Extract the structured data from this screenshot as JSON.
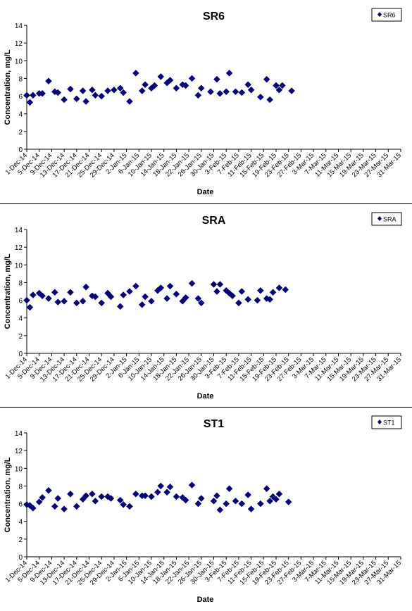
{
  "chart_data": [
    {
      "type": "scatter",
      "title": "SR6",
      "xlabel": "Date",
      "ylabel": "Concentration, mg/L",
      "ylim": [
        0,
        14
      ],
      "yticks": [
        0,
        2,
        4,
        6,
        8,
        10,
        12,
        14
      ],
      "xlim": [
        "1-Dec-14",
        "31-Mar-15"
      ],
      "xticks": [
        "1-Dec-14",
        "5-Dec-14",
        "9-Dec-14",
        "13-Dec-14",
        "17-Dec-14",
        "21-Dec-14",
        "25-Dec-14",
        "29-Dec-14",
        "2-Jan-15",
        "6-Jan-15",
        "10-Jan-15",
        "14-Jan-15",
        "18-Jan-15",
        "22-Jan-15",
        "26-Jan-15",
        "30-Jan-15",
        "3-Feb-15",
        "7-Feb-15",
        "11-Feb-15",
        "15-Feb-15",
        "19-Feb-15",
        "23-Feb-15",
        "27-Feb-15",
        "3-Mar-15",
        "7-Mar-15",
        "11-Mar-15",
        "15-Mar-15",
        "19-Mar-15",
        "23-Mar-15",
        "27-Mar-15",
        "31-Mar-15"
      ],
      "grid": false,
      "legend": "top-right",
      "series": [
        {
          "name": "SR6",
          "color": "#000080",
          "marker": "diamond",
          "points": [
            {
              "x": "1-Dec-14",
              "y": 6.1
            },
            {
              "x": "2-Dec-14",
              "y": 5.3
            },
            {
              "x": "3-Dec-14",
              "y": 6.1
            },
            {
              "x": "5-Dec-14",
              "y": 6.3
            },
            {
              "x": "6-Dec-14",
              "y": 6.3
            },
            {
              "x": "8-Dec-14",
              "y": 7.7
            },
            {
              "x": "10-Dec-14",
              "y": 6.5
            },
            {
              "x": "11-Dec-14",
              "y": 6.4
            },
            {
              "x": "13-Dec-14",
              "y": 5.6
            },
            {
              "x": "15-Dec-14",
              "y": 6.8
            },
            {
              "x": "17-Dec-14",
              "y": 5.7
            },
            {
              "x": "19-Dec-14",
              "y": 6.6
            },
            {
              "x": "20-Dec-14",
              "y": 5.4
            },
            {
              "x": "22-Dec-14",
              "y": 6.7
            },
            {
              "x": "23-Dec-14",
              "y": 6.1
            },
            {
              "x": "25-Dec-14",
              "y": 6.0
            },
            {
              "x": "27-Dec-14",
              "y": 6.6
            },
            {
              "x": "29-Dec-14",
              "y": 6.7
            },
            {
              "x": "31-Dec-14",
              "y": 6.9
            },
            {
              "x": "1-Jan-15",
              "y": 6.4
            },
            {
              "x": "3-Jan-15",
              "y": 5.4
            },
            {
              "x": "5-Jan-15",
              "y": 8.6
            },
            {
              "x": "7-Jan-15",
              "y": 6.6
            },
            {
              "x": "8-Jan-15",
              "y": 7.3
            },
            {
              "x": "10-Jan-15",
              "y": 6.9
            },
            {
              "x": "11-Jan-15",
              "y": 7.2
            },
            {
              "x": "13-Jan-15",
              "y": 8.2
            },
            {
              "x": "15-Jan-15",
              "y": 7.5
            },
            {
              "x": "16-Jan-15",
              "y": 7.8
            },
            {
              "x": "18-Jan-15",
              "y": 6.9
            },
            {
              "x": "20-Jan-15",
              "y": 7.3
            },
            {
              "x": "21-Jan-15",
              "y": 7.2
            },
            {
              "x": "23-Jan-15",
              "y": 8.0
            },
            {
              "x": "25-Jan-15",
              "y": 6.1
            },
            {
              "x": "26-Jan-15",
              "y": 6.9
            },
            {
              "x": "29-Jan-15",
              "y": 6.5
            },
            {
              "x": "31-Jan-15",
              "y": 7.9
            },
            {
              "x": "1-Feb-15",
              "y": 6.3
            },
            {
              "x": "3-Feb-15",
              "y": 6.5
            },
            {
              "x": "4-Feb-15",
              "y": 8.6
            },
            {
              "x": "6-Feb-15",
              "y": 6.5
            },
            {
              "x": "8-Feb-15",
              "y": 6.4
            },
            {
              "x": "10-Feb-15",
              "y": 7.3
            },
            {
              "x": "11-Feb-15",
              "y": 6.7
            },
            {
              "x": "14-Feb-15",
              "y": 5.9
            },
            {
              "x": "16-Feb-15",
              "y": 7.9
            },
            {
              "x": "17-Feb-15",
              "y": 5.6
            },
            {
              "x": "19-Feb-15",
              "y": 7.2
            },
            {
              "x": "20-Feb-15",
              "y": 6.7
            },
            {
              "x": "21-Feb-15",
              "y": 7.2
            },
            {
              "x": "24-Feb-15",
              "y": 6.6
            }
          ]
        }
      ]
    },
    {
      "type": "scatter",
      "title": "SRA",
      "xlabel": "Date",
      "ylabel": "Concentration, mg/L",
      "ylim": [
        0,
        14
      ],
      "yticks": [
        0,
        2,
        4,
        6,
        8,
        10,
        12,
        14
      ],
      "xlim": [
        "1-Dec-14",
        "31-Mar-15"
      ],
      "xticks": [
        "1-Dec-14",
        "5-Dec-14",
        "9-Dec-14",
        "13-Dec-14",
        "17-Dec-14",
        "21-Dec-14",
        "25-Dec-14",
        "29-Dec-14",
        "2-Jan-15",
        "6-Jan-15",
        "10-Jan-15",
        "14-Jan-15",
        "18-Jan-15",
        "22-Jan-15",
        "26-Jan-15",
        "30-Jan-15",
        "3-Feb-15",
        "7-Feb-15",
        "11-Feb-15",
        "15-Feb-15",
        "19-Feb-15",
        "23-Feb-15",
        "27-Feb-15",
        "3-Mar-15",
        "7-Mar-15",
        "11-Mar-15",
        "15-Mar-15",
        "19-Mar-15",
        "23-Mar-15",
        "27-Mar-15",
        "31-Mar-15"
      ],
      "grid": false,
      "legend": "top-right",
      "series": [
        {
          "name": "SRA",
          "color": "#000080",
          "marker": "diamond",
          "points": [
            {
              "x": "1-Dec-14",
              "y": 6.0
            },
            {
              "x": "2-Dec-14",
              "y": 5.2
            },
            {
              "x": "3-Dec-14",
              "y": 6.6
            },
            {
              "x": "5-Dec-14",
              "y": 6.8
            },
            {
              "x": "6-Dec-14",
              "y": 6.5
            },
            {
              "x": "8-Dec-14",
              "y": 6.2
            },
            {
              "x": "10-Dec-14",
              "y": 6.9
            },
            {
              "x": "11-Dec-14",
              "y": 5.8
            },
            {
              "x": "13-Dec-14",
              "y": 5.9
            },
            {
              "x": "15-Dec-14",
              "y": 6.9
            },
            {
              "x": "17-Dec-14",
              "y": 5.7
            },
            {
              "x": "19-Dec-14",
              "y": 5.9
            },
            {
              "x": "20-Dec-14",
              "y": 7.5
            },
            {
              "x": "22-Dec-14",
              "y": 6.5
            },
            {
              "x": "23-Dec-14",
              "y": 6.4
            },
            {
              "x": "25-Dec-14",
              "y": 5.7
            },
            {
              "x": "27-Dec-14",
              "y": 6.8
            },
            {
              "x": "28-Dec-14",
              "y": 6.4
            },
            {
              "x": "31-Dec-14",
              "y": 5.3
            },
            {
              "x": "1-Jan-15",
              "y": 6.6
            },
            {
              "x": "3-Jan-15",
              "y": 7.0
            },
            {
              "x": "5-Jan-15",
              "y": 7.6
            },
            {
              "x": "7-Jan-15",
              "y": 5.5
            },
            {
              "x": "8-Jan-15",
              "y": 6.4
            },
            {
              "x": "10-Jan-15",
              "y": 5.9
            },
            {
              "x": "12-Jan-15",
              "y": 7.1
            },
            {
              "x": "13-Jan-15",
              "y": 7.4
            },
            {
              "x": "15-Jan-15",
              "y": 6.2
            },
            {
              "x": "16-Jan-15",
              "y": 7.6
            },
            {
              "x": "18-Jan-15",
              "y": 6.7
            },
            {
              "x": "20-Jan-15",
              "y": 5.9
            },
            {
              "x": "21-Jan-15",
              "y": 6.3
            },
            {
              "x": "23-Jan-15",
              "y": 7.9
            },
            {
              "x": "25-Jan-15",
              "y": 6.2
            },
            {
              "x": "26-Jan-15",
              "y": 5.7
            },
            {
              "x": "30-Jan-15",
              "y": 7.8
            },
            {
              "x": "31-Jan-15",
              "y": 7.0
            },
            {
              "x": "1-Feb-15",
              "y": 7.8
            },
            {
              "x": "3-Feb-15",
              "y": 7.1
            },
            {
              "x": "4-Feb-15",
              "y": 6.8
            },
            {
              "x": "5-Feb-15",
              "y": 6.5
            },
            {
              "x": "7-Feb-15",
              "y": 5.7
            },
            {
              "x": "8-Feb-15",
              "y": 7.0
            },
            {
              "x": "10-Feb-15",
              "y": 6.1
            },
            {
              "x": "13-Feb-15",
              "y": 6.0
            },
            {
              "x": "14-Feb-15",
              "y": 7.1
            },
            {
              "x": "16-Feb-15",
              "y": 6.2
            },
            {
              "x": "17-Feb-15",
              "y": 6.1
            },
            {
              "x": "18-Feb-15",
              "y": 6.9
            },
            {
              "x": "20-Feb-15",
              "y": 7.4
            },
            {
              "x": "22-Feb-15",
              "y": 7.2
            }
          ]
        }
      ]
    },
    {
      "type": "scatter",
      "title": "ST1",
      "xlabel": "Date",
      "ylabel": "Concentration, mg/L",
      "ylim": [
        0,
        14
      ],
      "yticks": [
        0,
        2,
        4,
        6,
        8,
        10,
        12,
        14
      ],
      "xlim": [
        "1-Dec-14",
        "31-Mar-15"
      ],
      "xticks": [
        "1-Dec-14",
        "5-Dec-14",
        "9-Dec-14",
        "13-Dec-14",
        "17-Dec-14",
        "21-Dec-14",
        "25-Dec-14",
        "29-Dec-14",
        "2-Jan-15",
        "6-Jan-15",
        "10-Jan-15",
        "14-Jan-15",
        "18-Jan-15",
        "22-Jan-15",
        "26-Jan-15",
        "30-Jan-15",
        "3-Feb-15",
        "7-Feb-15",
        "11-Feb-15",
        "15-Feb-15",
        "19-Feb-15",
        "23-Feb-15",
        "27-Feb-15",
        "3-Mar-15",
        "7-Mar-15",
        "11-Mar-15",
        "15-Mar-15",
        "19-Mar-15",
        "23-Mar-15",
        "27-Mar-15",
        "31-Mar-15"
      ],
      "grid": false,
      "legend": "top-right",
      "series": [
        {
          "name": "ST1",
          "color": "#000080",
          "marker": "diamond",
          "points": [
            {
              "x": "1-Dec-14",
              "y": 5.9
            },
            {
              "x": "2-Dec-14",
              "y": 5.8
            },
            {
              "x": "3-Dec-14",
              "y": 5.5
            },
            {
              "x": "5-Dec-14",
              "y": 6.2
            },
            {
              "x": "6-Dec-14",
              "y": 6.7
            },
            {
              "x": "8-Dec-14",
              "y": 7.5
            },
            {
              "x": "10-Dec-14",
              "y": 5.7
            },
            {
              "x": "11-Dec-14",
              "y": 6.6
            },
            {
              "x": "13-Dec-14",
              "y": 5.4
            },
            {
              "x": "15-Dec-14",
              "y": 7.1
            },
            {
              "x": "17-Dec-14",
              "y": 5.7
            },
            {
              "x": "19-Dec-14",
              "y": 6.5
            },
            {
              "x": "20-Dec-14",
              "y": 6.9
            },
            {
              "x": "22-Dec-14",
              "y": 7.1
            },
            {
              "x": "23-Dec-14",
              "y": 6.3
            },
            {
              "x": "25-Dec-14",
              "y": 6.8
            },
            {
              "x": "27-Dec-14",
              "y": 6.8
            },
            {
              "x": "28-Dec-14",
              "y": 6.6
            },
            {
              "x": "31-Dec-14",
              "y": 6.4
            },
            {
              "x": "1-Jan-15",
              "y": 5.9
            },
            {
              "x": "3-Jan-15",
              "y": 5.7
            },
            {
              "x": "5-Jan-15",
              "y": 7.1
            },
            {
              "x": "7-Jan-15",
              "y": 6.9
            },
            {
              "x": "8-Jan-15",
              "y": 6.9
            },
            {
              "x": "10-Jan-15",
              "y": 6.8
            },
            {
              "x": "12-Jan-15",
              "y": 7.3
            },
            {
              "x": "13-Jan-15",
              "y": 8.0
            },
            {
              "x": "15-Jan-15",
              "y": 7.3
            },
            {
              "x": "16-Jan-15",
              "y": 7.9
            },
            {
              "x": "18-Jan-15",
              "y": 6.8
            },
            {
              "x": "20-Jan-15",
              "y": 6.7
            },
            {
              "x": "21-Jan-15",
              "y": 6.4
            },
            {
              "x": "23-Jan-15",
              "y": 8.1
            },
            {
              "x": "25-Jan-15",
              "y": 6.0
            },
            {
              "x": "26-Jan-15",
              "y": 6.6
            },
            {
              "x": "30-Jan-15",
              "y": 6.3
            },
            {
              "x": "31-Jan-15",
              "y": 6.9
            },
            {
              "x": "1-Feb-15",
              "y": 5.3
            },
            {
              "x": "3-Feb-15",
              "y": 6.0
            },
            {
              "x": "4-Feb-15",
              "y": 7.7
            },
            {
              "x": "6-Feb-15",
              "y": 6.3
            },
            {
              "x": "8-Feb-15",
              "y": 6.0
            },
            {
              "x": "10-Feb-15",
              "y": 7.0
            },
            {
              "x": "11-Feb-15",
              "y": 5.4
            },
            {
              "x": "14-Feb-15",
              "y": 6.0
            },
            {
              "x": "16-Feb-15",
              "y": 7.7
            },
            {
              "x": "17-Feb-15",
              "y": 6.3
            },
            {
              "x": "18-Feb-15",
              "y": 6.8
            },
            {
              "x": "19-Feb-15",
              "y": 6.5
            },
            {
              "x": "20-Feb-15",
              "y": 7.1
            },
            {
              "x": "23-Feb-15",
              "y": 6.2
            }
          ]
        }
      ]
    }
  ]
}
